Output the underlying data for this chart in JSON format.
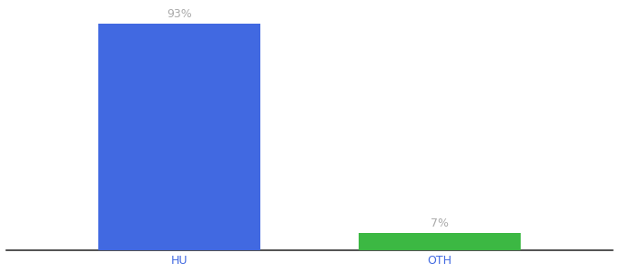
{
  "categories": [
    "HU",
    "OTH"
  ],
  "values": [
    93,
    7
  ],
  "bar_colors": [
    "#4169e1",
    "#3cb843"
  ],
  "labels": [
    "93%",
    "7%"
  ],
  "ylim": [
    0,
    100
  ],
  "background_color": "#ffffff",
  "label_color": "#aaaaaa",
  "axis_label_color": "#4169e1",
  "label_fontsize": 9,
  "tick_fontsize": 9,
  "bar_positions": [
    0.3,
    0.75
  ],
  "bar_width": 0.28
}
